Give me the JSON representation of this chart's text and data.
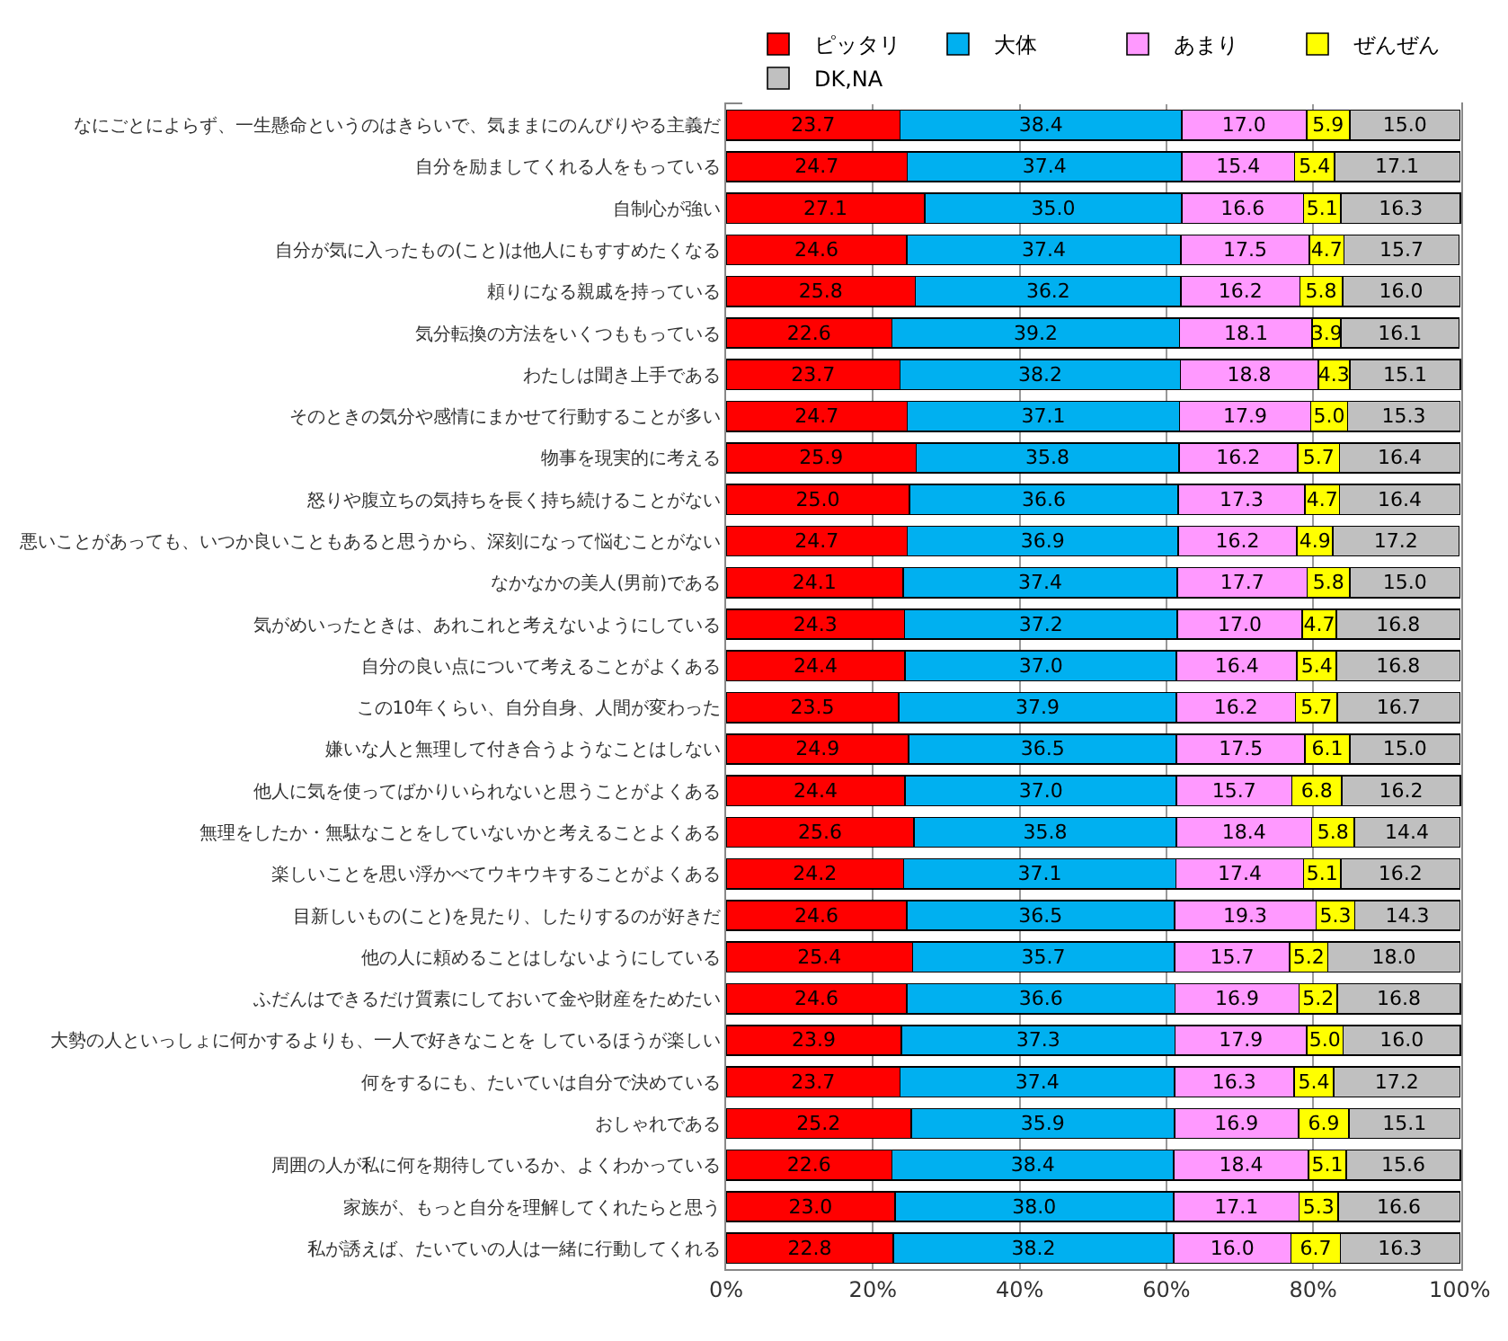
{
  "chart_data": {
    "type": "bar",
    "orientation": "horizontal",
    "stacked": true,
    "grid": "x",
    "legend": "top",
    "categories": [
      "なにごとによらず、一生懸命というのはきらいで、気ままにのんびりやる主義だ",
      "自分を励ましてくれる人をもっている",
      "自制心が強い",
      "自分が気に入ったもの(こと)は他人にもすすめたくなる",
      "頼りになる親戚を持っている",
      "気分転換の方法をいくつももっている",
      "わたしは聞き上手である",
      "そのときの気分や感情にまかせて行動することが多い",
      "物事を現実的に考える",
      "怒りや腹立ちの気持ちを長く持ち続けることがない",
      "悪いことがあっても、いつか良いこともあると思うから、深刻になって悩むことがない",
      "なかなかの美人(男前)である",
      "気がめいったときは、あれこれと考えないようにしている",
      "自分の良い点について考えることがよくある",
      "この10年くらい、自分自身、人間が変わった",
      "嫌いな人と無理して付き合うようなことはしない",
      "他人に気を使ってばかりいられないと思うことがよくある",
      "無理をしたか・無駄なことをしていないかと考えることよくある",
      "楽しいことを思い浮かべてウキウキすることがよくある",
      "目新しいもの(こと)を見たり、したりするのが好きだ",
      "他の人に頼めることはしないようにしている",
      "ふだんはできるだけ質素にしておいて金や財産をためたい",
      "大勢の人といっしょに何かするよりも、一人で好きなことを しているほうが楽しい",
      "何をするにも、たいていは自分で決めている",
      "おしゃれである",
      "周囲の人が私に何を期待しているか、よくわかっている",
      "家族が、もっと自分を理解してくれたらと思う",
      "私が誘えば、たいていの人は一緒に行動してくれる"
    ],
    "series": [
      {
        "name": "ピッタリ",
        "color": "#ff0000",
        "values": [
          23.7,
          24.7,
          27.1,
          24.6,
          25.8,
          22.6,
          23.7,
          24.7,
          25.9,
          25.0,
          24.7,
          24.1,
          24.3,
          24.4,
          23.5,
          24.9,
          24.4,
          25.6,
          24.2,
          24.6,
          25.4,
          24.6,
          23.9,
          23.7,
          25.2,
          22.6,
          23.0,
          22.8
        ],
        "value_labels": [
          "23.7",
          "24.7",
          "27.1",
          "24.6",
          "25.8",
          "22.6",
          "23.7",
          "24.7",
          "25.9",
          "25.0",
          "24.7",
          "24.1",
          "24.3",
          "24.4",
          "23.5",
          "24.9",
          "24.4",
          "25.6",
          "24.2",
          "24.6",
          "25.4",
          "24.6",
          "23.9",
          "23.7",
          "25.2",
          "22.6",
          "23.0",
          "22.8"
        ]
      },
      {
        "name": "大体",
        "color": "#00b0f0",
        "values": [
          38.4,
          37.4,
          35.0,
          37.4,
          36.2,
          39.2,
          38.2,
          37.1,
          35.8,
          36.6,
          36.9,
          37.4,
          37.2,
          37.0,
          37.9,
          36.5,
          37.0,
          35.8,
          37.1,
          36.5,
          35.7,
          36.6,
          37.3,
          37.4,
          35.9,
          38.4,
          38.0,
          38.2
        ],
        "value_labels": [
          "38.4",
          "37.4",
          "35.0",
          "37.4",
          "36.2",
          "39.2",
          "38.2",
          "37.1",
          "35.8",
          "36.6",
          "36.9",
          "37.4",
          "37.2",
          "37.0",
          "37.9",
          "36.5",
          "37.0",
          "35.8",
          "37.1",
          "36.5",
          "35.7",
          "36.6",
          "37.3",
          "37.4",
          "35.9",
          "38.4",
          "38.0",
          "38.2"
        ]
      },
      {
        "name": "あまり",
        "color": "#ff99ff",
        "values": [
          17.0,
          15.4,
          16.6,
          17.5,
          16.2,
          18.1,
          18.8,
          17.9,
          16.2,
          17.3,
          16.2,
          17.7,
          17.0,
          16.4,
          16.2,
          17.5,
          15.7,
          18.4,
          17.4,
          19.3,
          15.7,
          16.9,
          17.9,
          16.3,
          16.9,
          18.4,
          17.1,
          16.0
        ],
        "value_labels": [
          "17.0",
          "15.4",
          "16.6",
          "17.5",
          "16.2",
          "18.1",
          "18.8",
          "17.9",
          "16.2",
          "17.3",
          "16.2",
          "17.7",
          "17.0",
          "16.4",
          "16.2",
          "17.5",
          "15.7",
          "18.4",
          "17.4",
          "19.3",
          "15.7",
          "16.9",
          "17.9",
          "16.3",
          "16.9",
          "18.4",
          "17.1",
          "16.0"
        ]
      },
      {
        "name": "ぜんぜん",
        "color": "#ffff00",
        "values": [
          5.9,
          5.4,
          5.1,
          4.7,
          5.8,
          3.9,
          4.3,
          5.0,
          5.7,
          4.7,
          4.9,
          5.8,
          4.7,
          5.4,
          5.7,
          6.1,
          6.8,
          5.8,
          5.1,
          5.3,
          5.2,
          5.2,
          5.0,
          5.4,
          6.9,
          5.1,
          5.3,
          6.7
        ],
        "value_labels": [
          "5.9",
          "5.4",
          "5.1",
          "4.7",
          "5.8",
          "3.9",
          "4.3",
          "5.0",
          "5.7",
          "4.7",
          "4.9",
          "5.8",
          "4.7",
          "5.4",
          "5.7",
          "6.1",
          "6.8",
          "5.8",
          "5.1",
          "5.3",
          "5.2",
          "5.2",
          "5.0",
          "5.4",
          "6.9",
          "5.1",
          "5.3",
          "6.7"
        ]
      },
      {
        "name": "DK,NA",
        "color": "#c0c0c0",
        "values": [
          15.0,
          17.1,
          16.3,
          15.7,
          16.0,
          16.1,
          15.1,
          15.3,
          16.4,
          16.4,
          17.2,
          15.0,
          16.8,
          16.8,
          16.7,
          15.0,
          16.2,
          14.4,
          16.2,
          14.3,
          18.0,
          16.8,
          16.0,
          17.2,
          15.1,
          15.6,
          16.6,
          16.3
        ],
        "value_labels": [
          "15.0",
          "17.1",
          "16.3",
          "15.7",
          "16.0",
          "16.1",
          "15.1",
          "15.3",
          "16.4",
          "16.4",
          "17.2",
          "15.0",
          "16.8",
          "16.8",
          "16.7",
          "15.0",
          "16.2",
          "14.4",
          "16.2",
          "14.3",
          "18.0",
          "16.8",
          "16.0",
          "17.2",
          "15.1",
          "15.6",
          "16.6",
          "16.3"
        ]
      }
    ],
    "xlim": [
      0,
      100.2
    ],
    "xticks": [
      {
        "value": 0,
        "label": "0%"
      },
      {
        "value": 20,
        "label": "20%"
      },
      {
        "value": 40,
        "label": "40%"
      },
      {
        "value": 60,
        "label": "60%"
      },
      {
        "value": 80,
        "label": "80%"
      },
      {
        "value": 100,
        "label": "100%"
      }
    ]
  }
}
